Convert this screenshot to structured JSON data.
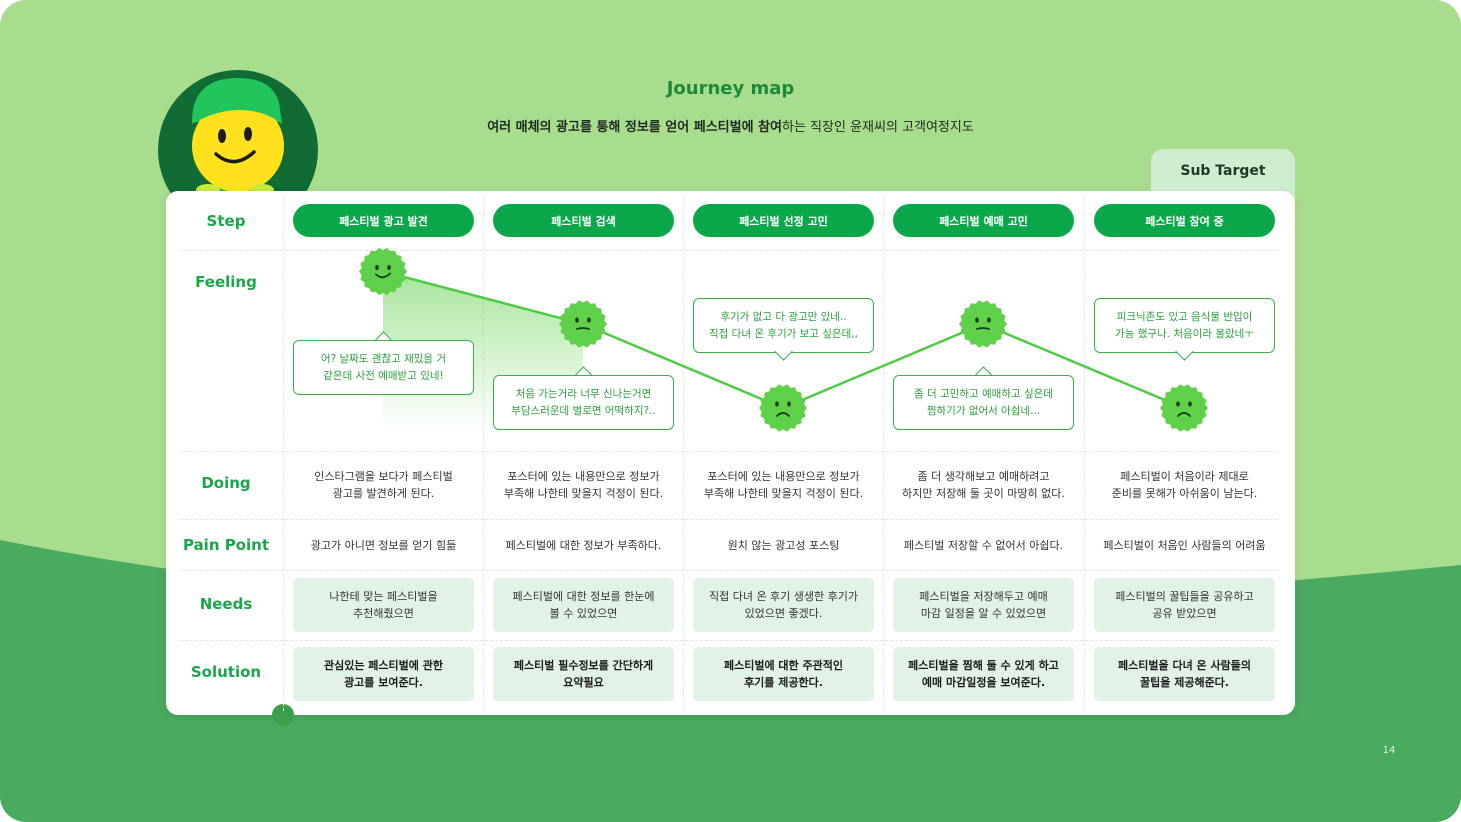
{
  "header": {
    "title": "Journey map",
    "subtitle_bold_1": "여러 매체의 광고를 통해 정보를 얻어 페스티벌에 참여",
    "subtitle_rest": "하는 직장인 윤재씨의 고객여정지도"
  },
  "sub_target_label": "Sub Target",
  "row_labels": {
    "step": "Step",
    "feeling": "Feeling",
    "doing": "Doing",
    "pain": "Pain Point",
    "needs": "Needs",
    "solution": "Solution"
  },
  "stages": [
    {
      "step": "페스티벌 광고 발견",
      "feeling_mood": "happy",
      "feeling_level": 0.85,
      "bubble": "어? 날짜도 괜찮고 재밌을 거\n같은데 사전 예매받고 있네!",
      "bubble_pos": "below",
      "doing": "인스타그램을 보다가 페스티벌\n광고를 발견하게 된다.",
      "pain": "광고가 아니면 정보를 얻기 힘듦",
      "needs": "나한테 맞는 페스티벌을\n추천해줬으면",
      "solution": "관심있는 페스티벌에 관한\n광고를 보여준다."
    },
    {
      "step": "페스티벌 검색",
      "feeling_mood": "neutral",
      "feeling_level": 0.6,
      "bubble": "처음 가는거라 너무 신나는거면\n부담스러운데 별로면 어떡하지?..",
      "bubble_pos": "below",
      "doing": "포스터에 있는 내용만으로 정보가\n부족해 나한테 맞을지 걱정이 된다.",
      "pain": "페스티벌에 대한 정보가 부족하다.",
      "needs": "페스티벌에 대한 정보를 한눈에\n볼 수 있었으면",
      "solution": "페스티벌 필수정보를 간단하게\n요약필요"
    },
    {
      "step": "페스티벌 선정 고민",
      "feeling_mood": "worried",
      "feeling_level": 0.2,
      "bubble": "후기가 없고 다 광고만 있네..\n직접 다녀 온 후기가 보고 싶은데,,",
      "bubble_pos": "above",
      "doing": "포스터에 있는 내용만으로 정보가\n부족해 나한테 맞을지 걱정이 된다.",
      "pain": "원치 않는 광고성 포스팅",
      "needs": "직접 다녀 온 후기 생생한 후기가\n있었으면 좋겠다.",
      "solution": "페스티벌에 대한 주관적인\n후기를 제공한다."
    },
    {
      "step": "페스티벌 예매 고민",
      "feeling_mood": "neutral",
      "feeling_level": 0.6,
      "bubble": "좀 더 고민하고 예매하고 싶은데\n찜하기가 없어서 아쉽네...",
      "bubble_pos": "below",
      "doing": "좀 더 생각해보고 예매하려고\n하지만 저장해 둘 곳이 마땅히 없다.",
      "pain": "페스티벌 저장할 수 없어서 아쉽다.",
      "needs": "페스티벌을 저장해두고 예매\n마감 일정을 알 수 있었으면",
      "solution": "페스티벌을 찜해 둘 수 있게 하고\n예매 마감일정을 보여준다."
    },
    {
      "step": "페스티벌 참여 중",
      "feeling_mood": "worried",
      "feeling_level": 0.2,
      "bubble": "피크닉존도 있고 음식물 반입이\n가능 했구나. 처음이라 몰랐네ㅜ",
      "bubble_pos": "above",
      "doing": "페스티벌이 처음이라 제대로\n준비를 못해가 아쉬움이 남는다.",
      "pain": "페스티벌이 처음인 사람들의 어려움",
      "needs": "페스티벌의 꿀팁들을 공유하고\n공유 받았으면",
      "solution": "페스티벌을 다녀 온 사람들의\n꿀팁을 제공해준다."
    }
  ],
  "page_number": "14",
  "colors": {
    "accent": "#0aa84a",
    "label": "#1aa64a",
    "face": "#5fd04a",
    "bg_light": "#a7dd8d",
    "bg_dark": "#4aaa5f",
    "box": "#e2f2e6"
  }
}
